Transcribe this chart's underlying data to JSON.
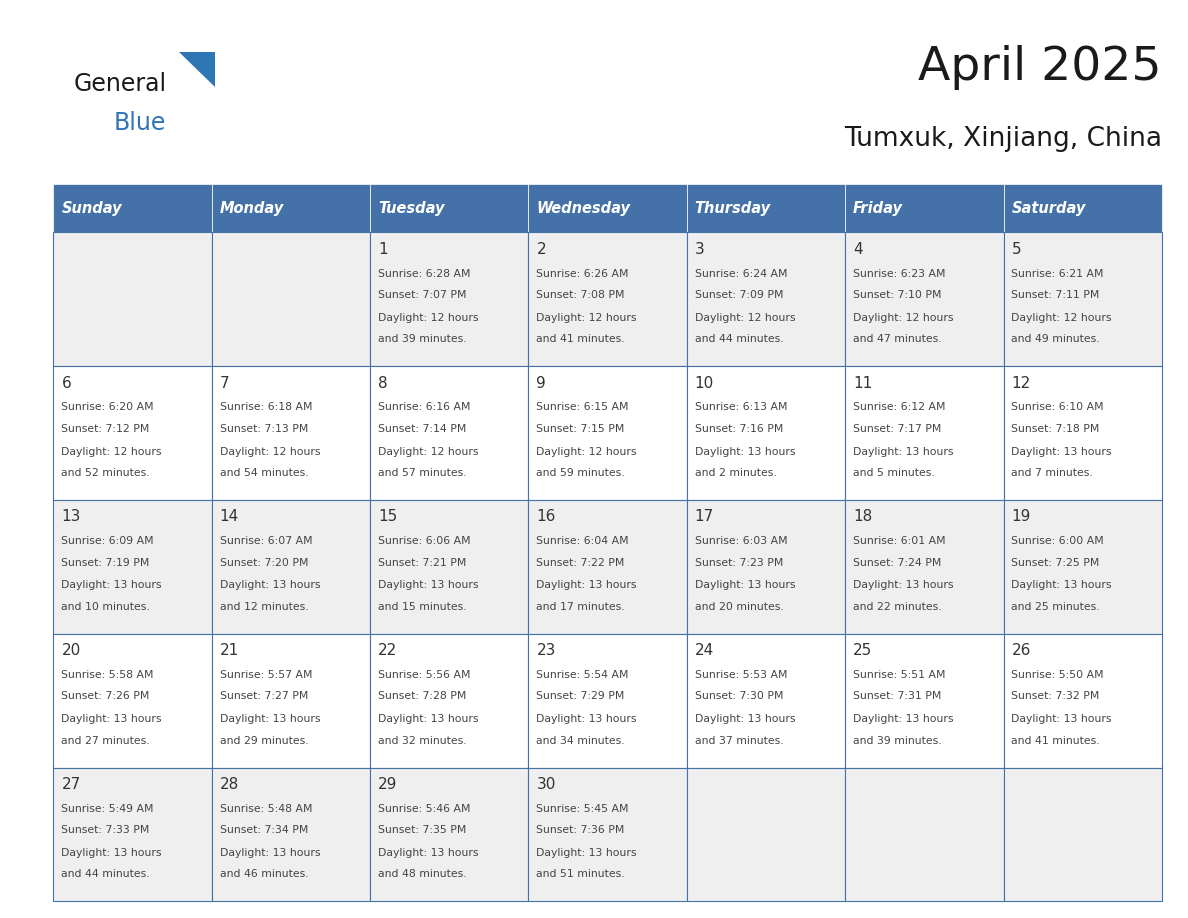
{
  "title": "April 2025",
  "subtitle": "Tumxuk, Xinjiang, China",
  "days_of_week": [
    "Sunday",
    "Monday",
    "Tuesday",
    "Wednesday",
    "Thursday",
    "Friday",
    "Saturday"
  ],
  "header_bg": "#4472A8",
  "header_text": "#FFFFFF",
  "cell_bg_even": "#EFEFEF",
  "cell_bg_odd": "#FFFFFF",
  "cell_border_color": "#4472A8",
  "day_num_color": "#333333",
  "text_color": "#444444",
  "logo_general_color": "#1a1a1a",
  "logo_blue_color": "#2E75B6",
  "calendar": [
    [
      {
        "day": "",
        "sunrise": "",
        "sunset": "",
        "daylight": ""
      },
      {
        "day": "",
        "sunrise": "",
        "sunset": "",
        "daylight": ""
      },
      {
        "day": "1",
        "sunrise": "Sunrise: 6:28 AM",
        "sunset": "Sunset: 7:07 PM",
        "daylight": "Daylight: 12 hours\nand 39 minutes."
      },
      {
        "day": "2",
        "sunrise": "Sunrise: 6:26 AM",
        "sunset": "Sunset: 7:08 PM",
        "daylight": "Daylight: 12 hours\nand 41 minutes."
      },
      {
        "day": "3",
        "sunrise": "Sunrise: 6:24 AM",
        "sunset": "Sunset: 7:09 PM",
        "daylight": "Daylight: 12 hours\nand 44 minutes."
      },
      {
        "day": "4",
        "sunrise": "Sunrise: 6:23 AM",
        "sunset": "Sunset: 7:10 PM",
        "daylight": "Daylight: 12 hours\nand 47 minutes."
      },
      {
        "day": "5",
        "sunrise": "Sunrise: 6:21 AM",
        "sunset": "Sunset: 7:11 PM",
        "daylight": "Daylight: 12 hours\nand 49 minutes."
      }
    ],
    [
      {
        "day": "6",
        "sunrise": "Sunrise: 6:20 AM",
        "sunset": "Sunset: 7:12 PM",
        "daylight": "Daylight: 12 hours\nand 52 minutes."
      },
      {
        "day": "7",
        "sunrise": "Sunrise: 6:18 AM",
        "sunset": "Sunset: 7:13 PM",
        "daylight": "Daylight: 12 hours\nand 54 minutes."
      },
      {
        "day": "8",
        "sunrise": "Sunrise: 6:16 AM",
        "sunset": "Sunset: 7:14 PM",
        "daylight": "Daylight: 12 hours\nand 57 minutes."
      },
      {
        "day": "9",
        "sunrise": "Sunrise: 6:15 AM",
        "sunset": "Sunset: 7:15 PM",
        "daylight": "Daylight: 12 hours\nand 59 minutes."
      },
      {
        "day": "10",
        "sunrise": "Sunrise: 6:13 AM",
        "sunset": "Sunset: 7:16 PM",
        "daylight": "Daylight: 13 hours\nand 2 minutes."
      },
      {
        "day": "11",
        "sunrise": "Sunrise: 6:12 AM",
        "sunset": "Sunset: 7:17 PM",
        "daylight": "Daylight: 13 hours\nand 5 minutes."
      },
      {
        "day": "12",
        "sunrise": "Sunrise: 6:10 AM",
        "sunset": "Sunset: 7:18 PM",
        "daylight": "Daylight: 13 hours\nand 7 minutes."
      }
    ],
    [
      {
        "day": "13",
        "sunrise": "Sunrise: 6:09 AM",
        "sunset": "Sunset: 7:19 PM",
        "daylight": "Daylight: 13 hours\nand 10 minutes."
      },
      {
        "day": "14",
        "sunrise": "Sunrise: 6:07 AM",
        "sunset": "Sunset: 7:20 PM",
        "daylight": "Daylight: 13 hours\nand 12 minutes."
      },
      {
        "day": "15",
        "sunrise": "Sunrise: 6:06 AM",
        "sunset": "Sunset: 7:21 PM",
        "daylight": "Daylight: 13 hours\nand 15 minutes."
      },
      {
        "day": "16",
        "sunrise": "Sunrise: 6:04 AM",
        "sunset": "Sunset: 7:22 PM",
        "daylight": "Daylight: 13 hours\nand 17 minutes."
      },
      {
        "day": "17",
        "sunrise": "Sunrise: 6:03 AM",
        "sunset": "Sunset: 7:23 PM",
        "daylight": "Daylight: 13 hours\nand 20 minutes."
      },
      {
        "day": "18",
        "sunrise": "Sunrise: 6:01 AM",
        "sunset": "Sunset: 7:24 PM",
        "daylight": "Daylight: 13 hours\nand 22 minutes."
      },
      {
        "day": "19",
        "sunrise": "Sunrise: 6:00 AM",
        "sunset": "Sunset: 7:25 PM",
        "daylight": "Daylight: 13 hours\nand 25 minutes."
      }
    ],
    [
      {
        "day": "20",
        "sunrise": "Sunrise: 5:58 AM",
        "sunset": "Sunset: 7:26 PM",
        "daylight": "Daylight: 13 hours\nand 27 minutes."
      },
      {
        "day": "21",
        "sunrise": "Sunrise: 5:57 AM",
        "sunset": "Sunset: 7:27 PM",
        "daylight": "Daylight: 13 hours\nand 29 minutes."
      },
      {
        "day": "22",
        "sunrise": "Sunrise: 5:56 AM",
        "sunset": "Sunset: 7:28 PM",
        "daylight": "Daylight: 13 hours\nand 32 minutes."
      },
      {
        "day": "23",
        "sunrise": "Sunrise: 5:54 AM",
        "sunset": "Sunset: 7:29 PM",
        "daylight": "Daylight: 13 hours\nand 34 minutes."
      },
      {
        "day": "24",
        "sunrise": "Sunrise: 5:53 AM",
        "sunset": "Sunset: 7:30 PM",
        "daylight": "Daylight: 13 hours\nand 37 minutes."
      },
      {
        "day": "25",
        "sunrise": "Sunrise: 5:51 AM",
        "sunset": "Sunset: 7:31 PM",
        "daylight": "Daylight: 13 hours\nand 39 minutes."
      },
      {
        "day": "26",
        "sunrise": "Sunrise: 5:50 AM",
        "sunset": "Sunset: 7:32 PM",
        "daylight": "Daylight: 13 hours\nand 41 minutes."
      }
    ],
    [
      {
        "day": "27",
        "sunrise": "Sunrise: 5:49 AM",
        "sunset": "Sunset: 7:33 PM",
        "daylight": "Daylight: 13 hours\nand 44 minutes."
      },
      {
        "day": "28",
        "sunrise": "Sunrise: 5:48 AM",
        "sunset": "Sunset: 7:34 PM",
        "daylight": "Daylight: 13 hours\nand 46 minutes."
      },
      {
        "day": "29",
        "sunrise": "Sunrise: 5:46 AM",
        "sunset": "Sunset: 7:35 PM",
        "daylight": "Daylight: 13 hours\nand 48 minutes."
      },
      {
        "day": "30",
        "sunrise": "Sunrise: 5:45 AM",
        "sunset": "Sunset: 7:36 PM",
        "daylight": "Daylight: 13 hours\nand 51 minutes."
      },
      {
        "day": "",
        "sunrise": "",
        "sunset": "",
        "daylight": ""
      },
      {
        "day": "",
        "sunrise": "",
        "sunset": "",
        "daylight": ""
      },
      {
        "day": "",
        "sunrise": "",
        "sunset": "",
        "daylight": ""
      }
    ]
  ]
}
